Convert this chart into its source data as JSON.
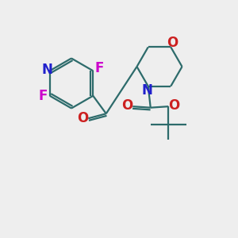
{
  "bg_color": "#eeeeee",
  "bond_color": "#2d6b6b",
  "N_color": "#2020cc",
  "O_color": "#cc2020",
  "F_color": "#cc00cc",
  "line_width": 1.6,
  "font_size": 11,
  "figsize": [
    3.0,
    3.0
  ],
  "dpi": 100,
  "xlim": [
    0,
    10
  ],
  "ylim": [
    0,
    10
  ]
}
